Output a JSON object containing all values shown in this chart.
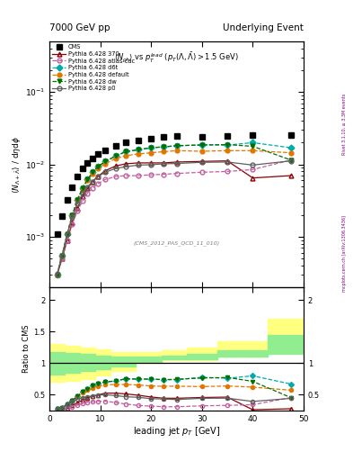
{
  "title_left": "7000 GeV pp",
  "title_right": "Underlying Event",
  "watermark": "(CMS_2012_PAS_QCD_11_010)",
  "right_label1": "Rivet 3.1.10, ≥ 3.3M events",
  "right_label2": "mcplots.cern.ch [arXiv:1306.3436]",
  "xlim": [
    0,
    50
  ],
  "ylim_main": [
    0.0002,
    0.5
  ],
  "ylim_ratio": [
    0.25,
    2.2
  ],
  "cms_x": [
    1.5,
    2.5,
    3.5,
    4.5,
    5.5,
    6.5,
    7.5,
    8.5,
    9.5,
    11.0,
    13.0,
    15.0,
    17.5,
    20.0,
    22.5,
    25.0,
    30.0,
    35.0,
    40.0,
    47.5
  ],
  "cms_y": [
    0.0011,
    0.00195,
    0.0032,
    0.0049,
    0.0068,
    0.0087,
    0.0105,
    0.0122,
    0.0138,
    0.0157,
    0.0182,
    0.02,
    0.0215,
    0.0228,
    0.0238,
    0.0245,
    0.0243,
    0.0244,
    0.0251,
    0.0255
  ],
  "p370_x": [
    1.5,
    2.5,
    3.5,
    4.5,
    5.5,
    6.5,
    7.5,
    8.5,
    9.5,
    11.0,
    13.0,
    15.0,
    17.5,
    20.0,
    22.5,
    25.0,
    30.0,
    35.0,
    40.0,
    47.5
  ],
  "p370_y": [
    0.0003,
    0.0005,
    0.0009,
    0.0016,
    0.0025,
    0.0036,
    0.0047,
    0.0058,
    0.0068,
    0.0082,
    0.0095,
    0.0102,
    0.0105,
    0.0105,
    0.0105,
    0.0108,
    0.011,
    0.0112,
    0.0065,
    0.007
  ],
  "patlas_x": [
    1.5,
    2.5,
    3.5,
    4.5,
    5.5,
    6.5,
    7.5,
    8.5,
    9.5,
    11.0,
    13.0,
    15.0,
    17.5,
    20.0,
    22.5,
    25.0,
    30.0,
    35.0,
    40.0,
    47.5
  ],
  "patlas_y": [
    0.0003,
    0.0005,
    0.0009,
    0.0015,
    0.0023,
    0.0031,
    0.004,
    0.0047,
    0.0054,
    0.0062,
    0.0068,
    0.007,
    0.007,
    0.0072,
    0.0073,
    0.0075,
    0.0078,
    0.008,
    0.0085,
    0.0115
  ],
  "pd6t_x": [
    1.5,
    2.5,
    3.5,
    4.5,
    5.5,
    6.5,
    7.5,
    8.5,
    9.5,
    11.0,
    13.0,
    15.0,
    17.5,
    20.0,
    22.5,
    25.0,
    30.0,
    35.0,
    40.0,
    47.5
  ],
  "pd6t_y": [
    0.0003,
    0.00055,
    0.0011,
    0.002,
    0.0032,
    0.0047,
    0.0062,
    0.0078,
    0.0093,
    0.011,
    0.013,
    0.015,
    0.016,
    0.017,
    0.0175,
    0.018,
    0.0188,
    0.0185,
    0.02,
    0.017
  ],
  "pdefault_x": [
    1.5,
    2.5,
    3.5,
    4.5,
    5.5,
    6.5,
    7.5,
    8.5,
    9.5,
    11.0,
    13.0,
    15.0,
    17.5,
    20.0,
    22.5,
    25.0,
    30.0,
    35.0,
    40.0,
    47.5
  ],
  "pdefault_y": [
    0.0003,
    0.00055,
    0.0011,
    0.002,
    0.0032,
    0.0046,
    0.006,
    0.0074,
    0.0087,
    0.0103,
    0.012,
    0.0132,
    0.014,
    0.0145,
    0.015,
    0.0155,
    0.0152,
    0.0155,
    0.0155,
    0.0145
  ],
  "pdw_x": [
    1.5,
    2.5,
    3.5,
    4.5,
    5.5,
    6.5,
    7.5,
    8.5,
    9.5,
    11.0,
    13.0,
    15.0,
    17.5,
    20.0,
    22.5,
    25.0,
    30.0,
    35.0,
    40.0,
    47.5
  ],
  "pdw_y": [
    0.0003,
    0.00055,
    0.0011,
    0.002,
    0.0032,
    0.0047,
    0.0062,
    0.0078,
    0.0093,
    0.011,
    0.013,
    0.015,
    0.016,
    0.017,
    0.0175,
    0.0182,
    0.0185,
    0.0188,
    0.0178,
    0.0115
  ],
  "pp0_x": [
    1.5,
    2.5,
    3.5,
    4.5,
    5.5,
    6.5,
    7.5,
    8.5,
    9.5,
    11.0,
    13.0,
    15.0,
    17.5,
    20.0,
    22.5,
    25.0,
    30.0,
    35.0,
    40.0,
    47.5
  ],
  "pp0_y": [
    0.0003,
    0.00055,
    0.0011,
    0.0019,
    0.0029,
    0.0039,
    0.0049,
    0.0058,
    0.0068,
    0.0078,
    0.0088,
    0.0093,
    0.0098,
    0.0099,
    0.0102,
    0.0103,
    0.0107,
    0.0108,
    0.0098,
    0.0112
  ],
  "cms_color": "#000000",
  "p370_color": "#8B0000",
  "patlas_color": "#C060A0",
  "pd6t_color": "#00AAAA",
  "pdefault_color": "#E07800",
  "pdw_color": "#007000",
  "pp0_color": "#606060",
  "band_x_edges": [
    0,
    3,
    6,
    9,
    12,
    17,
    22,
    27,
    33,
    43,
    50
  ],
  "band_yellow_lo": [
    0.7,
    0.72,
    0.75,
    0.8,
    0.88,
    1.0,
    1.05,
    1.05,
    1.1,
    1.25,
    1.3
  ],
  "band_yellow_hi": [
    1.3,
    1.28,
    1.25,
    1.22,
    1.18,
    1.18,
    1.2,
    1.25,
    1.35,
    1.7,
    1.8
  ],
  "band_green_lo": [
    0.82,
    0.84,
    0.87,
    0.9,
    0.95,
    1.02,
    1.06,
    1.06,
    1.1,
    1.15,
    1.15
  ],
  "band_green_hi": [
    1.18,
    1.16,
    1.14,
    1.12,
    1.1,
    1.1,
    1.12,
    1.15,
    1.2,
    1.45,
    1.5
  ]
}
